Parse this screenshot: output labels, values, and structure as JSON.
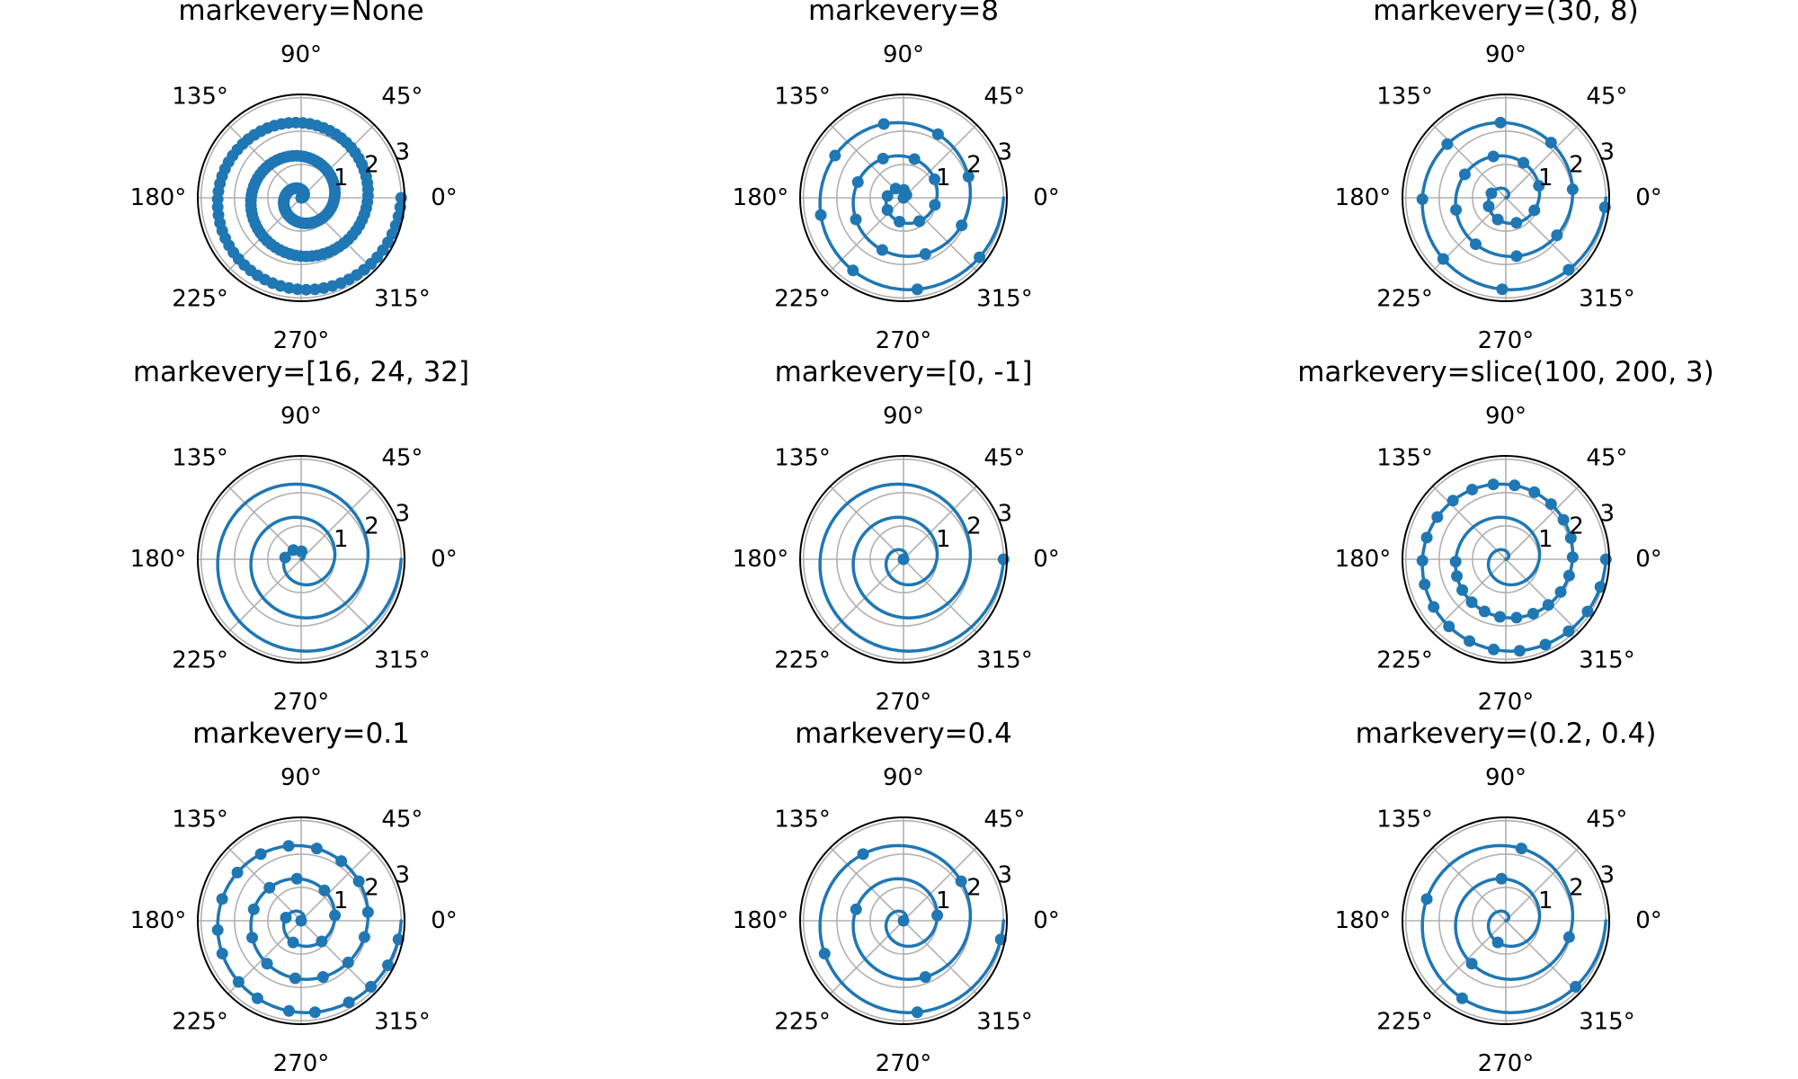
{
  "chart_data": [
    {
      "type": "line",
      "title": "markevery=None",
      "markevery": "None"
    },
    {
      "type": "line",
      "title": "markevery=8",
      "markevery": "8"
    },
    {
      "type": "line",
      "title": "markevery=(30, 8)",
      "markevery": "(30, 8)"
    },
    {
      "type": "line",
      "title": "markevery=[16, 24, 32]",
      "markevery": "[16, 24, 32]"
    },
    {
      "type": "line",
      "title": "markevery=[0, -1]",
      "markevery": "[0, -1]"
    },
    {
      "type": "line",
      "title": "markevery=slice(100, 200, 3)",
      "markevery": "slice(100, 200, 3)"
    },
    {
      "type": "line",
      "title": "markevery=0.1",
      "markevery": "0.1"
    },
    {
      "type": "line",
      "title": "markevery=0.4",
      "markevery": "0.4"
    },
    {
      "type": "line",
      "title": "markevery=(0.2, 0.4)",
      "markevery": "(0.2, 0.4)"
    }
  ],
  "common": {
    "projection": "polar",
    "theta_ticks": [
      "0°",
      "45°",
      "90°",
      "135°",
      "180°",
      "225°",
      "270°",
      "315°"
    ],
    "theta_tick_values_deg": [
      0,
      45,
      90,
      135,
      180,
      225,
      270,
      315
    ],
    "r_ticks": [
      "1",
      "2",
      "3"
    ],
    "r_tick_values": [
      1,
      2,
      3
    ],
    "r_label_angle_deg": 22.5,
    "rlim": [
      0,
      3.1
    ],
    "grid": true,
    "series": {
      "r": "linspace(0, 3, 200)",
      "theta": "2*pi*r",
      "n_points": 200,
      "marker": "o",
      "color": "#1f77b4"
    }
  }
}
